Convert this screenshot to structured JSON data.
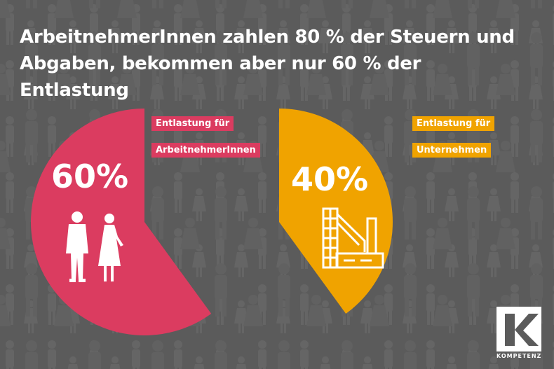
{
  "title": {
    "line1": "ArbeitnehmerInnen zahlen 80 % der Steuern und",
    "line2": "Abgaben, bekommen aber nur 60 % der Entlastung"
  },
  "colors": {
    "background": "#5b5b5b",
    "workers": "#db3c60",
    "companies": "#f0a300"
  },
  "chart_data": {
    "type": "pie",
    "series": [
      {
        "name": "Entlastung für ArbeitnehmerInnen",
        "label_line1": "Entlastung für",
        "label_line2": "ArbeitnehmerInnen",
        "value": 60,
        "value_label": "60%",
        "color": "#db3c60",
        "icon": "people-icon"
      },
      {
        "name": "Entlastung für Unternehmen",
        "label_line1": "Entlastung für",
        "label_line2": "Unternehmen",
        "value": 40,
        "value_label": "40%",
        "color": "#f0a300",
        "icon": "factory-icon"
      }
    ]
  },
  "logo": {
    "brand": "KOMPETENZ",
    "letter": "K"
  }
}
